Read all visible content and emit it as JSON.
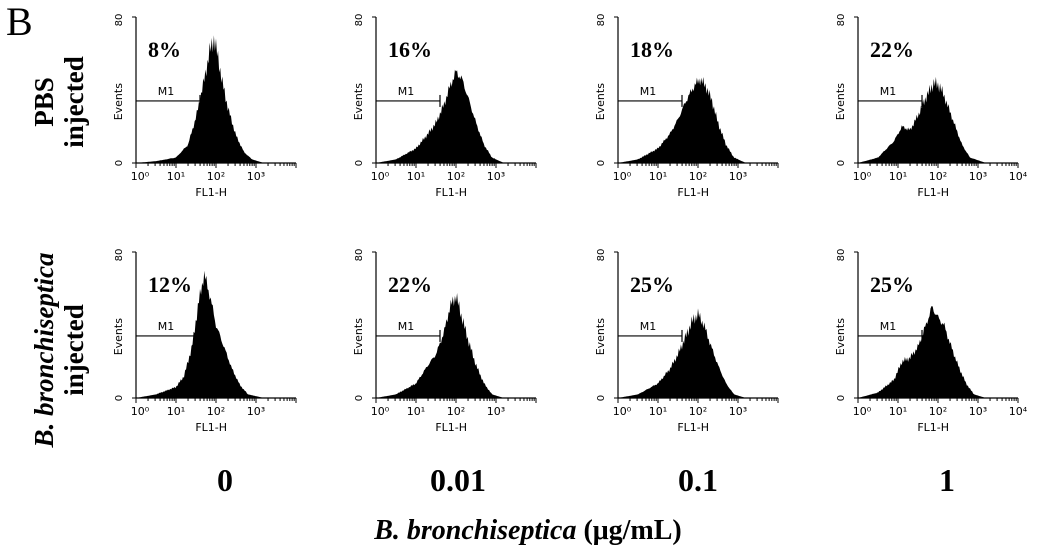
{
  "figure": {
    "panel_letter": "B",
    "row_labels": [
      {
        "line1": "PBS",
        "line2": "injected"
      },
      {
        "line1": "B. bronchiseptica",
        "line2": "injected"
      }
    ],
    "column_labels": [
      "0",
      "0.01",
      "0.1",
      "1"
    ],
    "x_axis_title": {
      "species": "B. bronchiseptica",
      "unit": " (μg/mL)"
    }
  },
  "chart_data": [
    {
      "type": "area",
      "row": "PBS injected",
      "column": "0",
      "percent_label": "8%",
      "marker_label": "M1",
      "ylabel": "Events",
      "xlabel": "FL1-H",
      "ylim": [
        0,
        80
      ],
      "y_tick_labels": [
        "0",
        "80"
      ],
      "x_tick_labels": [
        "10⁰",
        "10¹",
        "10²",
        "10³"
      ],
      "x": [
        0,
        0.5,
        1,
        1.3,
        1.5,
        1.7,
        1.85,
        1.95,
        2.05,
        2.15,
        2.3,
        2.5,
        2.7,
        2.9,
        3.2
      ],
      "y": [
        0,
        1,
        3,
        10,
        25,
        45,
        62,
        68,
        58,
        45,
        30,
        15,
        6,
        2,
        0
      ]
    },
    {
      "type": "area",
      "row": "PBS injected",
      "column": "0.01",
      "percent_label": "16%",
      "marker_label": "M1",
      "ylabel": "Events",
      "xlabel": "FL1-H",
      "ylim": [
        0,
        80
      ],
      "y_tick_labels": [
        "0",
        "80"
      ],
      "x_tick_labels": [
        "10⁰",
        "10¹",
        "10²",
        "10³"
      ],
      "x": [
        0,
        0.5,
        1,
        1.3,
        1.5,
        1.7,
        1.85,
        2,
        2.15,
        2.3,
        2.5,
        2.7,
        2.9,
        3.2
      ],
      "y": [
        0,
        2,
        8,
        16,
        22,
        32,
        42,
        50,
        46,
        36,
        22,
        10,
        3,
        0
      ]
    },
    {
      "type": "area",
      "row": "PBS injected",
      "column": "0.1",
      "percent_label": "18%",
      "marker_label": "M1",
      "ylabel": "Events",
      "xlabel": "FL1-H",
      "ylim": [
        0,
        80
      ],
      "y_tick_labels": [
        "0",
        "80"
      ],
      "x_tick_labels": [
        "10⁰",
        "10¹",
        "10²",
        "10³"
      ],
      "x": [
        0,
        0.5,
        1,
        1.3,
        1.5,
        1.7,
        1.9,
        2.05,
        2.2,
        2.35,
        2.5,
        2.7,
        2.9,
        3.2
      ],
      "y": [
        0,
        2,
        8,
        16,
        24,
        34,
        42,
        46,
        42,
        34,
        22,
        10,
        3,
        0
      ]
    },
    {
      "type": "area",
      "row": "PBS injected",
      "column": "1",
      "percent_label": "22%",
      "marker_label": "M1",
      "ylabel": "Events",
      "xlabel": "FL1-H",
      "ylim": [
        0,
        80
      ],
      "y_tick_labels": [
        "0",
        "80"
      ],
      "x_tick_labels": [
        "10⁰",
        "10¹",
        "10²",
        "10³",
        "10⁴"
      ],
      "x": [
        0,
        0.5,
        0.9,
        1.1,
        1.3,
        1.5,
        1.7,
        1.9,
        2.05,
        2.2,
        2.4,
        2.6,
        2.8,
        3.2
      ],
      "y": [
        0,
        3,
        12,
        20,
        18,
        26,
        36,
        44,
        42,
        34,
        22,
        10,
        3,
        0
      ]
    },
    {
      "type": "area",
      "row": "B. bronchiseptica injected",
      "column": "0",
      "percent_label": "12%",
      "marker_label": "M1",
      "ylabel": "Events",
      "xlabel": "FL1-H",
      "ylim": [
        0,
        80
      ],
      "y_tick_labels": [
        "0",
        "80"
      ],
      "x_tick_labels": [
        "10⁰",
        "10¹",
        "10²",
        "10³"
      ],
      "x": [
        0,
        0.5,
        1,
        1.2,
        1.4,
        1.55,
        1.7,
        1.85,
        2,
        2.2,
        2.4,
        2.6,
        2.8,
        3.2
      ],
      "y": [
        0,
        2,
        6,
        12,
        28,
        50,
        68,
        56,
        40,
        28,
        16,
        7,
        2,
        0
      ]
    },
    {
      "type": "area",
      "row": "B. bronchiseptica injected",
      "column": "0.01",
      "percent_label": "22%",
      "marker_label": "M1",
      "ylabel": "Events",
      "xlabel": "FL1-H",
      "ylim": [
        0,
        80
      ],
      "y_tick_labels": [
        "0",
        "80"
      ],
      "x_tick_labels": [
        "10⁰",
        "10¹",
        "10²",
        "10³"
      ],
      "x": [
        0,
        0.5,
        1,
        1.3,
        1.5,
        1.7,
        1.85,
        2,
        2.15,
        2.3,
        2.5,
        2.7,
        2.9,
        3.2
      ],
      "y": [
        0,
        2,
        8,
        18,
        24,
        36,
        50,
        56,
        44,
        32,
        18,
        8,
        2,
        0
      ]
    },
    {
      "type": "area",
      "row": "B. bronchiseptica injected",
      "column": "0.1",
      "percent_label": "25%",
      "marker_label": "M1",
      "ylabel": "Events",
      "xlabel": "FL1-H",
      "ylim": [
        0,
        80
      ],
      "y_tick_labels": [
        "0",
        "80"
      ],
      "x_tick_labels": [
        "10⁰",
        "10¹",
        "10²",
        "10³"
      ],
      "x": [
        0,
        0.5,
        1,
        1.3,
        1.5,
        1.7,
        1.85,
        2,
        2.15,
        2.3,
        2.5,
        2.7,
        2.9,
        3.2
      ],
      "y": [
        0,
        2,
        8,
        16,
        24,
        34,
        42,
        46,
        40,
        30,
        18,
        8,
        2,
        0
      ]
    },
    {
      "type": "area",
      "row": "B. bronchiseptica injected",
      "column": "1",
      "percent_label": "25%",
      "marker_label": "M1",
      "ylabel": "Events",
      "xlabel": "FL1-H",
      "ylim": [
        0,
        80
      ],
      "y_tick_labels": [
        "0",
        "80"
      ],
      "x_tick_labels": [
        "10⁰",
        "10¹",
        "10²",
        "10³",
        "10⁴"
      ],
      "x": [
        0,
        0.5,
        0.9,
        1.1,
        1.3,
        1.5,
        1.7,
        1.85,
        2,
        2.15,
        2.3,
        2.5,
        2.7,
        2.9,
        3.2
      ],
      "y": [
        0,
        3,
        10,
        20,
        22,
        28,
        40,
        50,
        44,
        40,
        30,
        18,
        8,
        2,
        0
      ]
    }
  ]
}
